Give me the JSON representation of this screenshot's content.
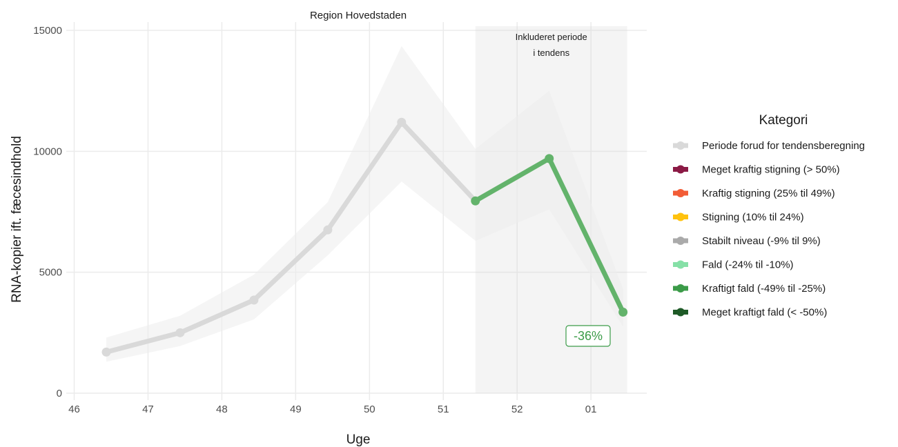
{
  "chart_data": {
    "type": "line",
    "title": "Region Hovedstaden",
    "xlabel": "Uge",
    "ylabel": "RNA-kopier ift. fæcesindhold",
    "x_ticks": [
      "46",
      "47",
      "48",
      "49",
      "50",
      "51",
      "52",
      "01"
    ],
    "y_ticks": [
      0,
      5000,
      10000,
      15000
    ],
    "ylim": [
      0,
      15000
    ],
    "grid": true,
    "points": [
      {
        "week": "46",
        "y": 1700,
        "lower": 1300,
        "upper": 2300
      },
      {
        "week": "47",
        "y": 2500,
        "lower": 1950,
        "upper": 3200
      },
      {
        "week": "48",
        "y": 3850,
        "lower": 3050,
        "upper": 4900
      },
      {
        "week": "49",
        "y": 6750,
        "lower": 5700,
        "upper": 7900
      },
      {
        "week": "50",
        "y": 11200,
        "lower": 8750,
        "upper": 14350
      },
      {
        "week": "51",
        "y": 7950,
        "lower": 6300,
        "upper": 10100
      },
      {
        "week": "52",
        "y": 9700,
        "lower": 7600,
        "upper": 12500
      },
      {
        "week": "01",
        "y": 3350,
        "lower": 2750,
        "upper": 4300
      }
    ],
    "series": [
      {
        "name": "Periode forud for tendensberegning",
        "color": "#d9d9d9",
        "weeks": [
          "46",
          "47",
          "48",
          "49",
          "50",
          "51"
        ]
      },
      {
        "name": "Kraftigt fald (-49% til -25%)",
        "color": "#63b36b",
        "weeks": [
          "51",
          "52",
          "01"
        ]
      }
    ],
    "highlight_period": {
      "label": "Inkluderet periode\ni tendens",
      "from_week": "51",
      "to_week": "01"
    },
    "trend_badge": {
      "text": "-36%",
      "color": "#3b9b48"
    },
    "legend": {
      "title": "Kategori",
      "position": "right",
      "entries": [
        {
          "label": "Periode forud for tendensberegning",
          "color": "#d9d9d9"
        },
        {
          "label": "Meget kraftig stigning (> 50%)",
          "color": "#8b1a45"
        },
        {
          "label": "Kraftig stigning (25% til 49%)",
          "color": "#f25c36"
        },
        {
          "label": "Stigning (10% til 24%)",
          "color": "#ffc20e"
        },
        {
          "label": "Stabilt niveau (-9% til 9%)",
          "color": "#aaaaaa"
        },
        {
          "label": "Fald (-24% til -10%)",
          "color": "#86e0a7"
        },
        {
          "label": "Kraftigt fald (-49% til -25%)",
          "color": "#3b9b48"
        },
        {
          "label": "Meget kraftigt fald (< -50%)",
          "color": "#1e5a27"
        }
      ]
    }
  }
}
